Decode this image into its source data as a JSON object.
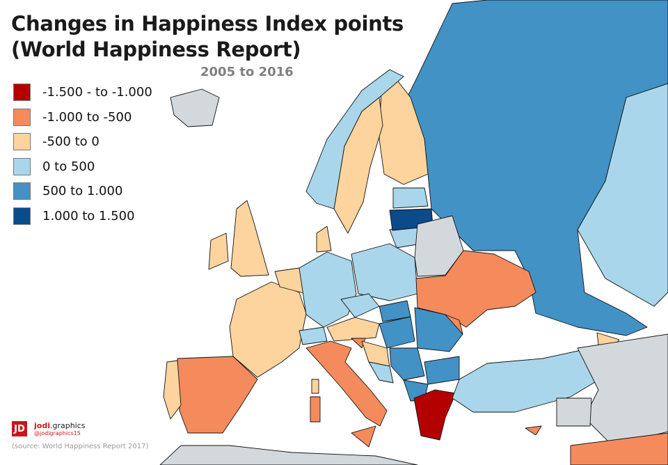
{
  "title_line1": "Changes in Happiness Index points",
  "title_line2": "(World Happiness Report)",
  "subtitle": "2005 to 2016",
  "legend": [
    {
      "label": "-1.500 - to -1.000",
      "color": "#b30000"
    },
    {
      "label": "-1.000 to -500",
      "color": "#f58b5d"
    },
    {
      "label": "-500 to 0",
      "color": "#fdd49e"
    },
    {
      "label": "0 to 500",
      "color": "#a9d6ea"
    },
    {
      "label": "500 to 1.000",
      "color": "#4292c6"
    },
    {
      "label": "1.000 to 1.500",
      "color": "#0b4a8b"
    }
  ],
  "no_data_color": "#d3d8dc",
  "brand": {
    "logo": "JD",
    "name_bold": "jodi",
    "name_rest": ".graphics",
    "handle": "@jodigraphics15"
  },
  "source": "(source: World Happiness Report 2017)"
}
